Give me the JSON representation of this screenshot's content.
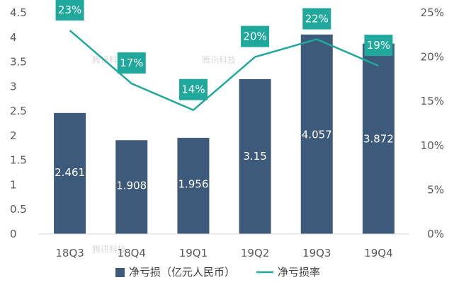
{
  "chart_data": {
    "type": "bar+line",
    "categories": [
      "18Q3",
      "18Q4",
      "19Q1",
      "19Q2",
      "19Q3",
      "19Q4"
    ],
    "series": [
      {
        "name": "净亏损（亿元人民币）",
        "kind": "bar",
        "axis": "left",
        "values": [
          2.461,
          1.908,
          1.956,
          3.15,
          4.057,
          3.872
        ],
        "labels": [
          "2.461",
          "1.908",
          "1.956",
          "3.15",
          "4.057",
          "3.872"
        ],
        "color": "#3d5a7a"
      },
      {
        "name": "净亏损率",
        "kind": "line",
        "axis": "right",
        "values": [
          23,
          17,
          14,
          20,
          22,
          19
        ],
        "labels": [
          "23%",
          "17%",
          "14%",
          "20%",
          "22%",
          "19%"
        ],
        "color": "#1fa89b"
      }
    ],
    "left_axis": {
      "ylim": [
        0,
        4.5
      ],
      "ticks": [
        0,
        0.5,
        1,
        1.5,
        2,
        2.5,
        3,
        3.5,
        4,
        4.5
      ],
      "tick_labels": [
        "0",
        "0.5",
        "1",
        "1.5",
        "2",
        "2.5",
        "3",
        "3.5",
        "4",
        "4.5"
      ]
    },
    "right_axis": {
      "ylim": [
        0,
        25
      ],
      "ticks": [
        0,
        5,
        10,
        15,
        20,
        25
      ],
      "tick_labels": [
        "0%",
        "5%",
        "10%",
        "15%",
        "20%",
        "25%"
      ]
    },
    "legend": {
      "placement": "bottom",
      "entries": [
        "净亏损（亿元人民币）",
        "净亏损率"
      ]
    },
    "watermarks": [
      "腾讯科技",
      "腾讯科技",
      "腾讯科技"
    ]
  }
}
